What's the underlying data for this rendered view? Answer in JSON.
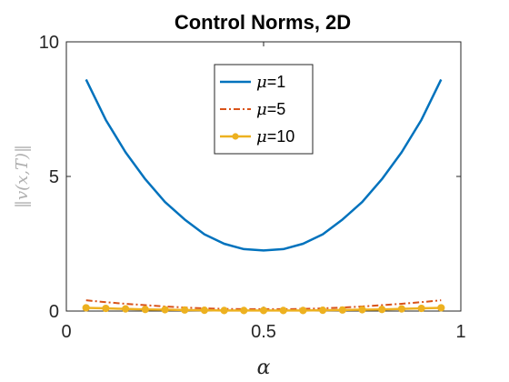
{
  "chart_data": {
    "type": "line",
    "title": "Control Norms, 2D",
    "xlabel": "α",
    "ylabel": "‖v(x,T)‖",
    "xlim": [
      0,
      1
    ],
    "ylim": [
      0,
      10
    ],
    "xticks": [
      "0",
      "0.5",
      "1"
    ],
    "yticks": [
      "0",
      "5",
      "10"
    ],
    "legend_position": "top-center",
    "x": [
      0.05,
      0.1,
      0.15,
      0.2,
      0.25,
      0.3,
      0.35,
      0.4,
      0.45,
      0.5,
      0.55,
      0.6,
      0.65,
      0.7,
      0.75,
      0.8,
      0.85,
      0.9,
      0.95
    ],
    "series": [
      {
        "name": "μ=1",
        "legend_symbol": "μ",
        "legend_value": "=1",
        "color": "#0072BD",
        "style": "solid",
        "values": [
          8.6,
          7.1,
          5.9,
          4.9,
          4.05,
          3.4,
          2.85,
          2.5,
          2.3,
          2.25,
          2.3,
          2.5,
          2.85,
          3.4,
          4.05,
          4.9,
          5.9,
          7.1,
          8.6
        ]
      },
      {
        "name": "μ=5",
        "legend_symbol": "μ",
        "legend_value": "=5",
        "color": "#D95319",
        "style": "dashdot",
        "values": [
          0.4,
          0.33,
          0.27,
          0.22,
          0.17,
          0.13,
          0.1,
          0.08,
          0.07,
          0.07,
          0.07,
          0.08,
          0.1,
          0.13,
          0.17,
          0.22,
          0.27,
          0.33,
          0.4
        ]
      },
      {
        "name": "μ=10",
        "legend_symbol": "μ",
        "legend_value": "=10",
        "color": "#EDB120",
        "style": "solid-marker",
        "values": [
          0.12,
          0.1,
          0.08,
          0.06,
          0.05,
          0.04,
          0.03,
          0.02,
          0.02,
          0.02,
          0.02,
          0.02,
          0.03,
          0.04,
          0.05,
          0.06,
          0.08,
          0.1,
          0.12
        ]
      }
    ]
  }
}
